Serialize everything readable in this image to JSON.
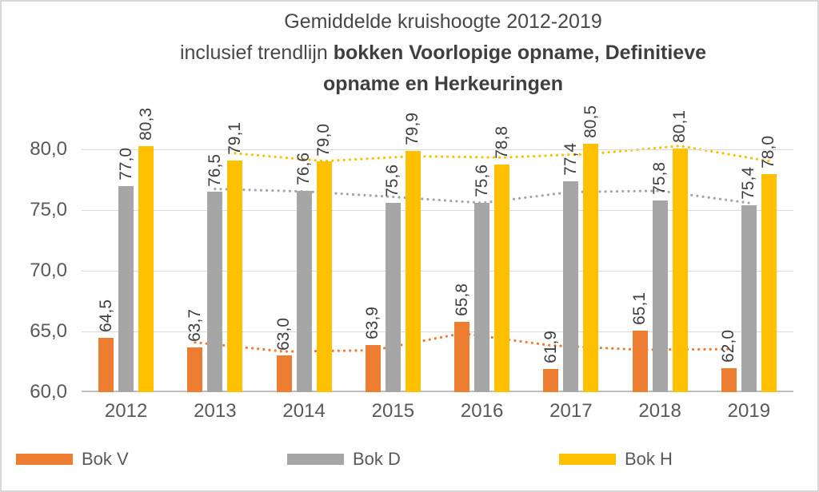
{
  "title": {
    "line1": "Gemiddelde kruishoogte 2012-2019",
    "line2_regular": "inclusief trendlijn ",
    "line2_bold": "bokken Voorlopige opname, Definitieve",
    "line3": "opname en Herkeuringen"
  },
  "colors": {
    "orange": "#ED7D31",
    "gray": "#A6A6A6",
    "yellow": "#FFC000",
    "grid": "#D9D9D9",
    "axis_line": "#BFBFBF",
    "axis_text": "#595959",
    "data_label_text": "#3F3F3F",
    "border": "#D9D9D9"
  },
  "chart_data": {
    "type": "bar",
    "title": "Gemiddelde kruishoogte 2012-2019 inclusief trendlijn bokken Voorlopige opname, Definitieve opname en Herkeuringen",
    "categories": [
      "2012",
      "2013",
      "2014",
      "2015",
      "2016",
      "2017",
      "2018",
      "2019"
    ],
    "series": [
      {
        "name": "Bok V",
        "color": "#ED7D31",
        "values": [
          64.5,
          63.7,
          63.0,
          63.9,
          65.8,
          61.9,
          65.1,
          62.0
        ],
        "labels": [
          "64,5",
          "63,7",
          "63,0",
          "63,9",
          "65,8",
          "61,9",
          "65,1",
          "62,0"
        ]
      },
      {
        "name": "Bok D",
        "color": "#A6A6A6",
        "values": [
          77.0,
          76.5,
          76.6,
          75.6,
          75.6,
          77.4,
          75.8,
          75.4
        ],
        "labels": [
          "77,0",
          "76,5",
          "76,6",
          "75,6",
          "75,6",
          "77,4",
          "75,8",
          "75,4"
        ]
      },
      {
        "name": "Bok H",
        "color": "#FFC000",
        "values": [
          80.3,
          79.1,
          79.0,
          79.9,
          78.8,
          80.5,
          80.1,
          78.0
        ],
        "labels": [
          "80,3",
          "79,1",
          "79,0",
          "79,9",
          "78,8",
          "80,5",
          "80,1",
          "78,0"
        ]
      }
    ],
    "trendlines": [
      {
        "series": "Bok V",
        "type": "moving_average_period2",
        "style": "dotted",
        "color": "#ED7D31",
        "categories": [
          "2013",
          "2014",
          "2015",
          "2016",
          "2017",
          "2018",
          "2019"
        ],
        "values": [
          64.1,
          63.35,
          63.45,
          64.85,
          63.85,
          63.5,
          63.55
        ]
      },
      {
        "series": "Bok D",
        "type": "moving_average_period2",
        "style": "dotted",
        "color": "#A6A6A6",
        "categories": [
          "2013",
          "2014",
          "2015",
          "2016",
          "2017",
          "2018",
          "2019"
        ],
        "values": [
          76.75,
          76.55,
          76.1,
          75.6,
          76.5,
          76.6,
          75.6
        ]
      },
      {
        "series": "Bok H",
        "type": "moving_average_period2",
        "style": "dotted",
        "color": "#FFC000",
        "categories": [
          "2013",
          "2014",
          "2015",
          "2016",
          "2017",
          "2018",
          "2019"
        ],
        "values": [
          79.7,
          79.05,
          79.45,
          79.35,
          79.65,
          80.3,
          79.05
        ]
      }
    ],
    "yticks": [
      {
        "value": 60,
        "label": "60,0"
      },
      {
        "value": 65,
        "label": "65,0"
      },
      {
        "value": 70,
        "label": "70,0"
      },
      {
        "value": 75,
        "label": "75,0"
      },
      {
        "value": 80,
        "label": "80,0"
      }
    ],
    "ylim": [
      60,
      84.3
    ],
    "grid": "horizontal",
    "legend": {
      "position": "bottom",
      "items": [
        {
          "label": "Bok V",
          "color": "#ED7D31"
        },
        {
          "label": "Bok D",
          "color": "#A6A6A6"
        },
        {
          "label": "Bok H",
          "color": "#FFC000"
        }
      ]
    }
  }
}
